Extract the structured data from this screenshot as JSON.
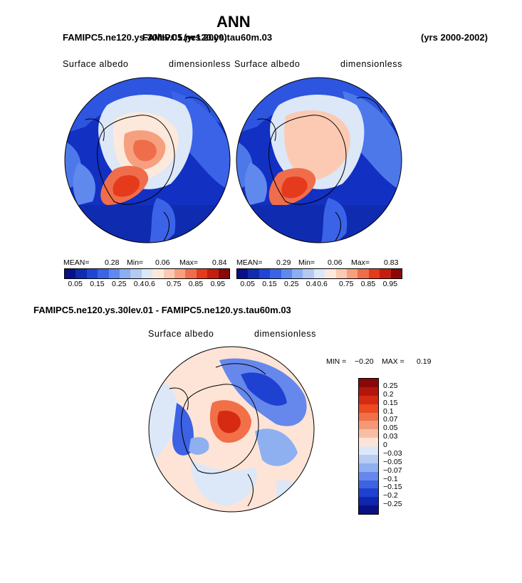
{
  "main_title": "ANN",
  "top_left_caption": "FAMIPC5.ne120.ys.30lev.01",
  "top_center_caption": "FAMIPC5.ne120.ys.tau60m.03",
  "top_overlap_caption": "(yrs 2000)",
  "top_right_caption": "(yrs 2000-2002)",
  "panel1": {
    "var_label": "Surface albedo",
    "units_label": "dimensionless",
    "mean_label": "MEAN=",
    "mean_value": "0.28",
    "min_label": "Min=",
    "min_value": "0.06",
    "max_label": "Max=",
    "max_value": "0.84"
  },
  "panel2": {
    "var_label": "Surface albedo",
    "units_label": "dimensionless",
    "mean_label": "MEAN=",
    "mean_value": "0.29",
    "min_label": "Min=",
    "min_value": "0.06",
    "max_label": "Max=",
    "max_value": "0.83"
  },
  "horizontal_colorbar": {
    "colors": [
      "#0a0f8a",
      "#0f2bb0",
      "#1f45d6",
      "#3a63e8",
      "#6089ee",
      "#8cadf2",
      "#b4caf2",
      "#dce7f7",
      "#fde9dc",
      "#fccab3",
      "#f7a07f",
      "#f06d4b",
      "#e63a1d",
      "#c61e0e",
      "#8a0808"
    ],
    "tick_labels": [
      "0.05",
      "0.15",
      "0.25",
      "0.4",
      "0.6",
      "0.75",
      "0.85",
      "0.95"
    ]
  },
  "diff_caption": "FAMIPC5.ne120.ys.30lev.01 - FAMIPC5.ne120.ys.tau60m.03",
  "panel3": {
    "var_label": "Surface albedo",
    "units_label": "dimensionless",
    "min_label": "MIN =",
    "min_value": "−0.20",
    "max_label": "MAX =",
    "max_value": "0.19"
  },
  "vertical_colorbar": {
    "colors": [
      "#8a0808",
      "#b3150b",
      "#d72a12",
      "#ec4a22",
      "#f27048",
      "#f59876",
      "#f8bea5",
      "#fde4d6",
      "#dce8f8",
      "#b6ccf3",
      "#8eb0f0",
      "#6688ec",
      "#3d62e3",
      "#1e41d2",
      "#0f27ae",
      "#0a1185"
    ],
    "tick_labels": [
      "0.25",
      "0.2",
      "0.15",
      "0.1",
      "0.07",
      "0.05",
      "0.03",
      "0",
      "−0.03",
      "−0.05",
      "−0.07",
      "−0.1",
      "−0.15",
      "−0.2",
      "−0.25"
    ]
  }
}
